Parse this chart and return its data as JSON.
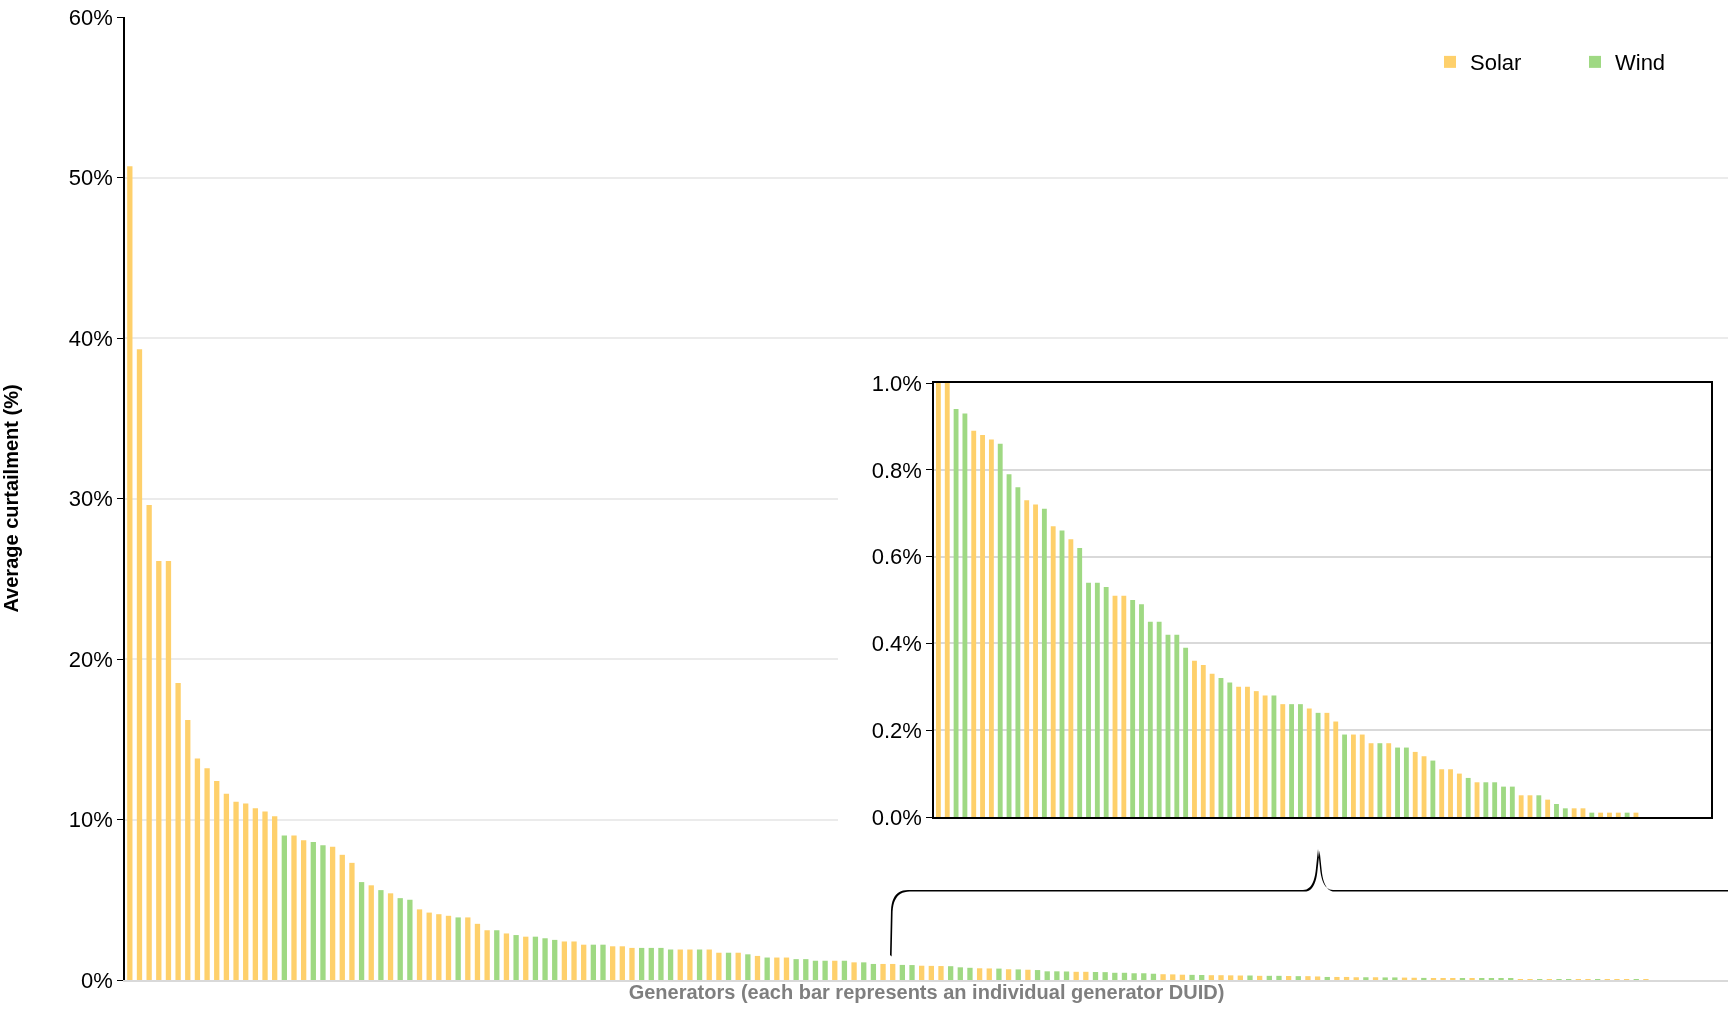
{
  "chart_data": [
    {
      "type": "bar",
      "xlabel": "Generators (each bar represents an individual generator DUID)",
      "ylabel": "Average curtailment (%)",
      "categories": [
        null,
        null,
        null,
        null,
        null,
        null,
        null,
        null,
        null,
        null,
        null,
        null,
        null,
        null,
        null,
        null,
        null,
        null,
        null,
        null,
        null,
        null,
        null,
        null,
        null,
        null,
        null,
        null,
        null,
        null,
        null,
        null,
        null,
        null,
        null,
        null,
        null,
        null,
        null,
        null,
        null,
        null,
        null,
        null,
        null,
        null,
        null,
        null,
        null,
        null,
        null,
        null,
        null,
        null,
        null,
        null,
        null,
        null,
        null,
        null,
        null,
        null,
        null,
        null,
        null,
        null,
        null,
        null,
        null,
        null,
        null,
        null,
        null,
        null,
        null,
        null,
        null,
        null,
        null,
        null,
        null,
        null,
        null,
        null,
        null,
        null,
        null,
        null,
        null,
        null,
        null,
        null,
        null,
        null,
        null,
        null,
        null,
        null,
        null,
        null,
        null,
        null,
        null,
        null,
        null,
        null,
        null,
        null,
        null,
        null,
        null,
        null,
        null,
        null,
        null,
        null,
        null,
        null,
        null,
        null,
        null,
        null,
        null,
        null,
        null,
        null,
        null,
        null,
        null,
        null,
        null,
        null,
        null,
        null,
        null,
        null,
        null,
        null,
        null,
        null,
        null,
        null,
        null,
        null,
        null,
        null,
        null,
        null,
        null,
        null,
        null,
        null,
        null,
        null,
        null,
        null,
        null,
        null,
        null,
        null,
        null,
        null,
        null,
        null,
        null,
        null
      ],
      "series": [
        {
          "name": "Solar",
          "color": "#fed06b",
          "values": [
            50.7,
            39.3,
            29.6,
            26.1,
            26.1,
            18.5,
            16.2,
            13.8,
            13.2,
            12.4,
            11.6,
            11.1,
            11.0,
            10.7,
            10.5,
            10.2,
            null,
            9.0,
            8.7,
            null,
            null,
            8.3,
            7.8,
            7.3,
            null,
            5.9,
            null,
            5.4,
            null,
            null,
            4.4,
            4.2,
            4.1,
            4.0,
            null,
            3.9,
            3.5,
            3.1,
            null,
            2.9,
            null,
            2.7,
            null,
            null,
            null,
            2.4,
            2.4,
            2.2,
            null,
            null,
            2.1,
            2.1,
            2.0,
            null,
            null,
            null,
            null,
            1.9,
            1.9,
            null,
            1.9,
            1.7,
            null,
            1.7,
            null,
            1.5,
            null,
            1.4,
            1.4,
            null,
            null,
            null,
            null,
            1.2,
            null,
            1.1,
            null,
            null,
            1.0,
            1.0,
            null,
            null,
            0.89,
            0.88,
            0.87,
            null,
            null,
            null,
            0.73,
            0.72,
            null,
            0.67,
            null,
            0.64,
            null,
            null,
            null,
            null,
            0.51,
            0.51,
            null,
            null,
            null,
            null,
            null,
            null,
            null,
            0.36,
            0.35,
            0.33,
            null,
            null,
            0.3,
            0.3,
            0.29,
            0.28,
            null,
            0.26,
            null,
            null,
            0.25,
            null,
            0.24,
            0.22,
            null,
            0.19,
            0.19,
            0.17,
            null,
            0.17,
            null,
            null,
            0.15,
            0.14,
            null,
            0.11,
            0.11,
            0.1,
            null,
            0.08,
            null,
            null,
            null,
            null,
            0.05,
            0.05,
            null,
            0.04,
            null,
            null,
            0.02,
            0.02,
            null,
            0.01,
            0.01,
            0.01,
            null,
            0.01,
            null,
            0.0,
            null,
            0.0,
            null,
            0.0,
            null,
            0.0
          ]
        },
        {
          "name": "Wind",
          "color": "#9fd983",
          "values": [
            null,
            null,
            null,
            null,
            null,
            null,
            null,
            null,
            null,
            null,
            null,
            null,
            null,
            null,
            null,
            null,
            9.0,
            null,
            null,
            8.6,
            8.4,
            null,
            null,
            null,
            6.1,
            null,
            5.6,
            null,
            5.1,
            5.0,
            null,
            null,
            null,
            null,
            3.9,
            null,
            null,
            null,
            3.1,
            null,
            2.8,
            null,
            2.7,
            2.6,
            2.5,
            null,
            null,
            null,
            2.2,
            2.2,
            null,
            null,
            null,
            2.0,
            2.0,
            2.0,
            1.9,
            null,
            null,
            1.9,
            null,
            null,
            1.7,
            null,
            1.6,
            null,
            1.4,
            null,
            null,
            1.3,
            1.3,
            1.2,
            1.2,
            null,
            1.2,
            null,
            1.1,
            1.0,
            null,
            null,
            0.94,
            0.93,
            null,
            null,
            null,
            0.86,
            0.79,
            0.76,
            null,
            null,
            0.71,
            null,
            0.66,
            null,
            0.62,
            0.54,
            0.54,
            0.53,
            null,
            null,
            0.5,
            0.49,
            0.45,
            0.45,
            0.42,
            0.42,
            0.39,
            null,
            null,
            null,
            0.32,
            0.31,
            null,
            null,
            null,
            null,
            0.28,
            null,
            0.26,
            0.26,
            null,
            0.24,
            null,
            null,
            0.19,
            null,
            null,
            null,
            0.17,
            null,
            0.16,
            0.16,
            null,
            null,
            0.13,
            null,
            null,
            null,
            0.09,
            null,
            0.08,
            0.08,
            0.07,
            0.07,
            null,
            null,
            0.05,
            null,
            0.03,
            0.02,
            null,
            null,
            0.01,
            null,
            null,
            null,
            0.01,
            null,
            0.0,
            null,
            0.0,
            null,
            0.0,
            null,
            0.0,
            null
          ]
        }
      ],
      "ylim": [
        0,
        60
      ],
      "yticks": [
        {
          "value": 0,
          "label": "0%"
        },
        {
          "value": 10,
          "label": "10%"
        },
        {
          "value": 20,
          "label": "20%"
        },
        {
          "value": 30,
          "label": "30%"
        },
        {
          "value": 40,
          "label": "40%"
        },
        {
          "value": 50,
          "label": "50%"
        },
        {
          "value": 60,
          "label": "60%"
        }
      ],
      "grid": "y",
      "legend": "top right",
      "tick_labels": "y"
    },
    {
      "type": "bar",
      "categories": [
        null,
        null,
        null,
        null,
        null,
        null,
        null,
        null,
        null,
        null,
        null,
        null,
        null,
        null,
        null,
        null,
        null,
        null,
        null,
        null,
        null,
        null,
        null,
        null,
        null,
        null,
        null,
        null,
        null,
        null,
        null,
        null,
        null,
        null,
        null,
        null,
        null,
        null,
        null,
        null,
        null,
        null,
        null,
        null,
        null,
        null,
        null,
        null,
        null,
        null,
        null,
        null,
        null,
        null,
        null,
        null,
        null,
        null,
        null,
        null,
        null,
        null,
        null,
        null,
        null,
        null,
        null,
        null,
        null,
        null,
        null,
        null,
        null,
        null,
        null,
        null,
        null,
        null,
        null,
        null,
        null,
        null,
        null,
        null,
        null,
        null,
        null,
        null
      ],
      "series": [
        {
          "color": "#fed06b",
          "values": [
            1.0,
            1.0,
            null,
            null,
            0.89,
            0.88,
            0.87,
            null,
            null,
            null,
            0.73,
            0.72,
            null,
            0.67,
            null,
            0.64,
            null,
            null,
            null,
            null,
            0.51,
            0.51,
            null,
            null,
            null,
            null,
            null,
            null,
            null,
            0.36,
            0.35,
            0.33,
            null,
            null,
            0.3,
            0.3,
            0.29,
            0.28,
            null,
            0.26,
            null,
            null,
            0.25,
            null,
            0.24,
            0.22,
            null,
            0.19,
            0.19,
            0.17,
            null,
            0.17,
            null,
            null,
            0.15,
            0.14,
            null,
            0.11,
            0.11,
            0.1,
            null,
            0.08,
            null,
            null,
            null,
            null,
            0.05,
            0.05,
            null,
            0.04,
            null,
            null,
            0.02,
            0.02,
            null,
            0.01,
            0.01,
            0.01,
            null,
            0.01,
            null,
            0.0,
            null,
            0.0,
            null,
            0.0,
            null,
            0.0
          ]
        },
        {
          "color": "#9fd983",
          "values": [
            null,
            null,
            0.94,
            0.93,
            null,
            null,
            null,
            0.86,
            0.79,
            0.76,
            null,
            null,
            0.71,
            null,
            0.66,
            null,
            0.62,
            0.54,
            0.54,
            0.53,
            null,
            null,
            0.5,
            0.49,
            0.45,
            0.45,
            0.42,
            0.42,
            0.39,
            null,
            null,
            null,
            0.32,
            0.31,
            null,
            null,
            null,
            null,
            0.28,
            null,
            0.26,
            0.26,
            null,
            0.24,
            null,
            null,
            0.19,
            null,
            null,
            null,
            0.17,
            null,
            0.16,
            0.16,
            null,
            null,
            0.13,
            null,
            null,
            null,
            0.09,
            null,
            0.08,
            0.08,
            0.07,
            0.07,
            null,
            null,
            0.05,
            null,
            0.03,
            0.02,
            null,
            null,
            0.01,
            null,
            null,
            null,
            0.01,
            null,
            0.0,
            null,
            0.0,
            null,
            0.0,
            null,
            0.0,
            null
          ]
        }
      ],
      "ylim": [
        0,
        1
      ],
      "yticks": [
        {
          "value": 0,
          "label": "0.0%"
        },
        {
          "value": 0.2,
          "label": "0.2%"
        },
        {
          "value": 0.4,
          "label": "0.4%"
        },
        {
          "value": 0.6,
          "label": "0.6%"
        },
        {
          "value": 0.8,
          "label": "0.8%"
        },
        {
          "value": 1,
          "label": "1.0%"
        }
      ],
      "grid": "y",
      "tick_labels": "y"
    }
  ]
}
